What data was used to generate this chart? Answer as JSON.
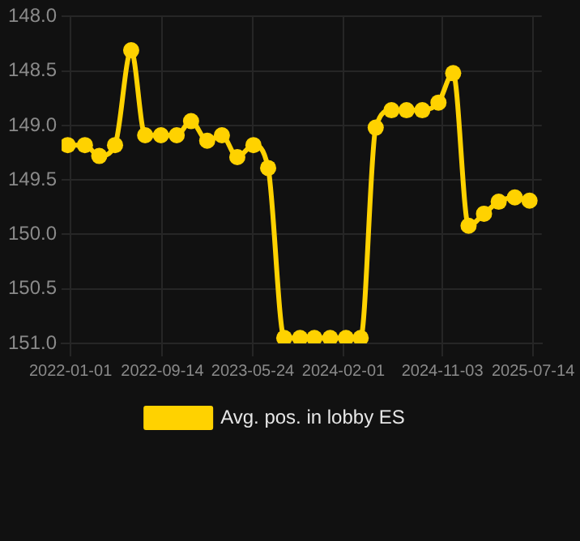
{
  "chart_data": {
    "type": "line",
    "x": [
      "2021-12-24",
      "2022-02-10",
      "2022-03-22",
      "2022-05-05",
      "2022-06-19",
      "2022-07-28",
      "2022-09-10",
      "2022-10-24",
      "2022-12-03",
      "2023-01-17",
      "2023-02-27",
      "2023-04-11",
      "2023-05-26",
      "2023-07-06",
      "2023-08-20",
      "2023-10-03",
      "2023-11-12",
      "2023-12-26",
      "2024-02-08",
      "2024-03-20",
      "2024-05-01",
      "2024-06-14",
      "2024-07-26",
      "2024-09-08",
      "2024-10-23",
      "2024-12-03",
      "2025-01-15",
      "2025-02-27",
      "2025-04-09",
      "2025-05-24",
      "2025-07-04"
    ],
    "series": [
      {
        "name": "Avg. pos. in lobby ES",
        "color": "#ffd200",
        "values": [
          149.18,
          149.18,
          149.28,
          149.18,
          148.31,
          149.09,
          149.09,
          149.09,
          148.96,
          149.14,
          149.09,
          149.29,
          149.18,
          149.39,
          150.95,
          150.95,
          150.95,
          150.95,
          150.95,
          150.95,
          149.02,
          148.86,
          148.86,
          148.86,
          148.79,
          148.52,
          149.92,
          149.81,
          149.7,
          149.66,
          149.69
        ]
      }
    ],
    "xlim": [
      "2021-12-07",
      "2025-08-07"
    ],
    "xticks": [
      "2022-01-01",
      "2022-09-14",
      "2023-05-24",
      "2024-02-01",
      "2024-11-03",
      "2025-07-14"
    ],
    "ylim": [
      151,
      148
    ],
    "yticks": [
      {
        "value": 148,
        "label": "148.0"
      },
      {
        "value": 148.5,
        "label": "148.5"
      },
      {
        "value": 149,
        "label": "149.0"
      },
      {
        "value": 149.5,
        "label": "149.5"
      },
      {
        "value": 150,
        "label": "150.0"
      },
      {
        "value": 150.5,
        "label": "150.5"
      },
      {
        "value": 151,
        "label": "151.0"
      }
    ],
    "grid": true,
    "legend": "bottom",
    "marker": "circle",
    "line_style": "solid"
  }
}
